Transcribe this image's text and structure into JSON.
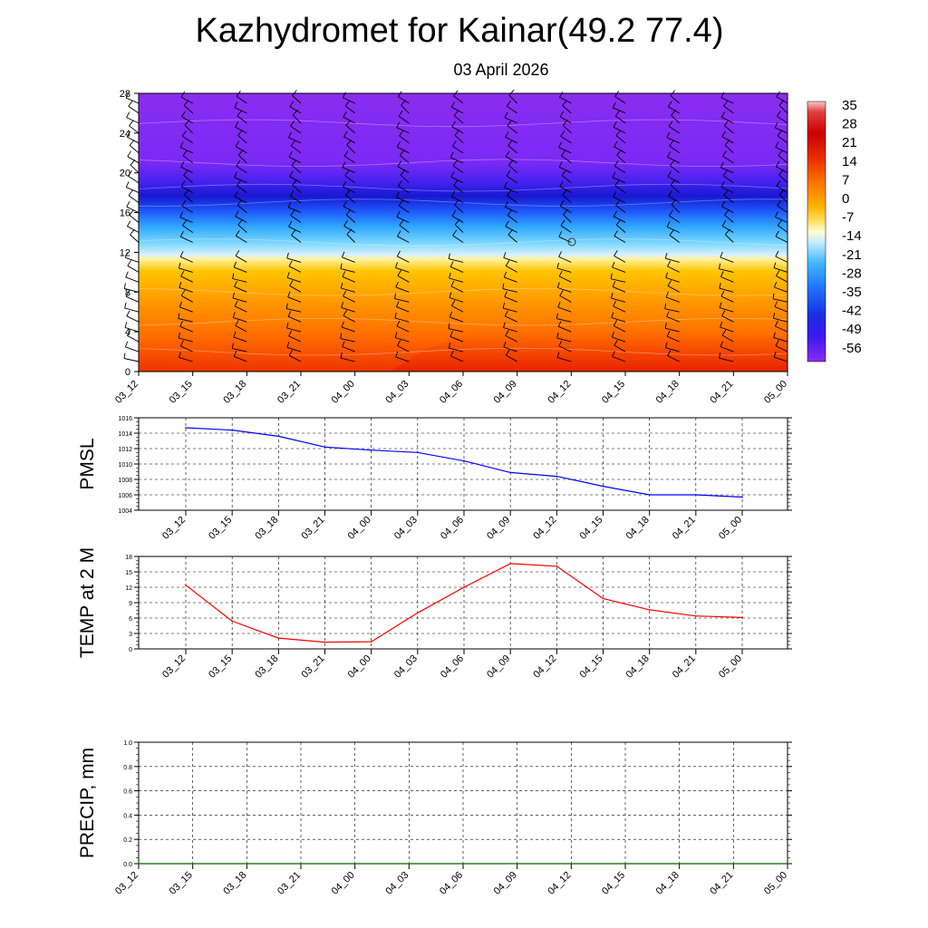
{
  "title": "Kazhydromet for Kainar(49.2 77.4)",
  "subtitle": "03 April 2026",
  "chart_data": [
    {
      "type": "heatmap",
      "name": "vertical cross-section (temperature with wind barbs)",
      "x_ticks": [
        "03_12",
        "03_15",
        "03_18",
        "03_21",
        "04_00",
        "04_03",
        "04_06",
        "04_09",
        "04_12",
        "04_15",
        "04_18",
        "04_21",
        "05_00"
      ],
      "y_ticks": [
        0,
        4,
        8,
        12,
        16,
        20,
        24,
        28
      ],
      "ylim": [
        0,
        28
      ],
      "colorbar_labels": [
        "35",
        "28",
        "21",
        "14",
        "7",
        "0",
        "-7",
        "-14",
        "-21",
        "-28",
        "-35",
        "-42",
        "-49",
        "-56"
      ],
      "temperature_profile": {
        "levels": [
          0,
          2,
          4,
          6,
          8,
          10,
          11.5,
          12,
          13,
          14,
          16,
          17,
          18,
          19,
          20,
          22,
          24,
          28
        ],
        "values_start": [
          8,
          7,
          5,
          4,
          2,
          -1,
          -4,
          -10,
          -14,
          -20,
          -30,
          -42,
          -56,
          -58,
          -55,
          -52,
          -54,
          -54
        ],
        "values_peak": [
          16,
          14,
          12,
          10,
          8,
          4,
          1,
          -10,
          -14,
          -20,
          -30,
          -42,
          -56,
          -58,
          -55,
          -52,
          -54,
          -54
        ]
      }
    },
    {
      "type": "line",
      "ylabel": "PMSL",
      "categories": [
        "03_12",
        "03_15",
        "03_18",
        "03_21",
        "04_00",
        "04_03",
        "04_06",
        "04_09",
        "04_12",
        "04_15",
        "04_18",
        "04_21",
        "05_00"
      ],
      "ylim": [
        1004,
        1016
      ],
      "y_ticks": [
        1004,
        1006,
        1008,
        1010,
        1012,
        1014,
        1016
      ],
      "color": "#0000ff",
      "values": [
        1014.7,
        1014.4,
        1013.6,
        1012.2,
        1011.8,
        1011.5,
        1010.4,
        1008.9,
        1008.4,
        1007.1,
        1006.0,
        1006.0,
        1005.7
      ]
    },
    {
      "type": "line",
      "ylabel": "TEMP at 2 M",
      "categories": [
        "03_12",
        "03_15",
        "03_18",
        "03_21",
        "04_00",
        "04_03",
        "04_06",
        "04_09",
        "04_12",
        "04_15",
        "04_18",
        "04_21",
        "05_00"
      ],
      "ylim": [
        0,
        18
      ],
      "y_ticks": [
        0,
        3,
        6,
        9,
        12,
        15,
        18
      ],
      "color": "#ff0000",
      "values": [
        12.4,
        5.4,
        2.1,
        1.3,
        1.4,
        7.0,
        12.0,
        16.6,
        16.1,
        9.8,
        7.6,
        6.4,
        6.1
      ]
    },
    {
      "type": "line",
      "ylabel": "PRECIP, mm",
      "categories": [
        "03_12",
        "03_15",
        "03_18",
        "03_21",
        "04_00",
        "04_03",
        "04_06",
        "04_09",
        "04_12",
        "04_15",
        "04_18",
        "04_21",
        "05_00"
      ],
      "ylim": [
        0,
        1.0
      ],
      "y_ticks": [
        "0.0",
        "0.2",
        "0.4",
        "0.6",
        "0.8",
        "1.0"
      ],
      "color": "#006400",
      "values": [
        0,
        0,
        0,
        0,
        0,
        0,
        0,
        0,
        0,
        0,
        0,
        0,
        0
      ]
    }
  ]
}
